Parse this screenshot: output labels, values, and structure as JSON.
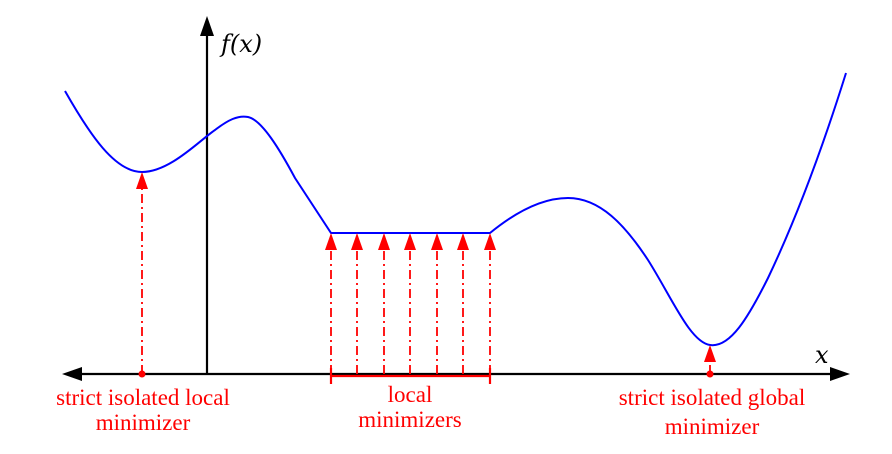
{
  "axes": {
    "y_label": "f(x)",
    "x_label": "x",
    "axis_color": "#000000"
  },
  "colors": {
    "curve": "#0000ff",
    "annotation": "#ff0000"
  },
  "labels": {
    "strict_local": [
      "strict isolated local",
      "minimizer"
    ],
    "local": [
      "local",
      "minimizers"
    ],
    "strict_global": [
      "strict isolated global",
      "minimizer"
    ]
  }
}
